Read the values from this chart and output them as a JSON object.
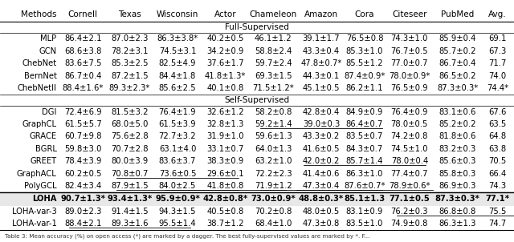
{
  "columns": [
    "Methods",
    "Cornell",
    "Texas",
    "Wisconsin",
    "Actor",
    "Chameleon",
    "Amazon",
    "Cora",
    "Citeseer",
    "PubMed",
    "Avg."
  ],
  "rows_full": [
    [
      "MLP",
      "86.4±2.1",
      "87.0±2.3",
      "86.3±3.8*",
      "40.2±0.5",
      "46.1±1.2",
      "39.1±1.7",
      "76.5±0.8",
      "74.3±1.0",
      "85.9±0.4",
      "69.1"
    ],
    [
      "GCN",
      "68.6±3.8",
      "78.2±3.1",
      "74.5±3.1",
      "34.2±0.9",
      "58.8±2.4",
      "43.3±0.4",
      "85.3±1.0",
      "76.7±0.5",
      "85.7±0.2",
      "67.3"
    ],
    [
      "ChebNet",
      "83.6±7.5",
      "85.3±2.5",
      "82.5±4.9",
      "37.6±1.7",
      "59.7±2.4",
      "47.8±0.7*",
      "85.5±1.2",
      "77.0±0.7",
      "86.7±0.4",
      "71.7"
    ],
    [
      "BernNet",
      "86.7±0.4",
      "87.2±1.5",
      "84.4±1.8",
      "41.8±1.3*",
      "69.3±1.5",
      "44.3±0.1",
      "87.4±0.9*",
      "78.0±0.9*",
      "86.5±0.2",
      "74.0"
    ],
    [
      "ChebNetII",
      "88.4±1.6*",
      "89.3±2.3*",
      "85.6±2.5",
      "40.1±0.8",
      "71.5±1.2*",
      "45.1±0.5",
      "86.2±1.1",
      "76.5±0.9",
      "87.3±0.3*",
      "74.4*"
    ]
  ],
  "rows_self": [
    [
      "DGI",
      "72.4±6.9",
      "81.5±3.2",
      "76.4±1.9",
      "32.6±1.2",
      "58.2±0.8",
      "42.8±0.4",
      "84.9±0.9",
      "76.4±0.9",
      "83.1±0.6",
      "67.6"
    ],
    [
      "GraphCL",
      "61.5±5.7",
      "68.0±5.0",
      "61.5±3.9",
      "32.8±1.3",
      "59.2±1.4",
      "39.0±0.3",
      "86.4±0.7",
      "78.0±0.5",
      "85.2±0.2",
      "63.5"
    ],
    [
      "GRACE",
      "60.7±9.8",
      "75.6±2.8",
      "72.7±3.2",
      "31.9±1.0",
      "59.6±1.3",
      "43.3±0.2",
      "83.5±0.7",
      "74.2±0.8",
      "81.8±0.6",
      "64.8"
    ],
    [
      "BGRL",
      "59.8±3.0",
      "70.7±2.8",
      "63.1±4.0",
      "33.1±0.7",
      "64.0±1.3",
      "41.6±0.5",
      "84.3±0.7",
      "74.5±1.0",
      "83.2±0.3",
      "63.8"
    ],
    [
      "GREET",
      "78.4±3.9",
      "80.0±3.9",
      "83.6±3.7",
      "38.3±0.9",
      "63.2±1.0",
      "42.0±0.2",
      "85.7±1.4",
      "78.0±0.4",
      "85.6±0.3",
      "70.5"
    ],
    [
      "GraphACL",
      "60.2±0.5",
      "70.8±0.7",
      "73.6±0.5",
      "29.6±0.1",
      "72.2±2.3",
      "41.4±0.6",
      "86.3±1.0",
      "77.4±0.7",
      "85.8±0.3",
      "66.4"
    ],
    [
      "PolyGCL",
      "82.4±3.4",
      "87.9±1.5",
      "84.0±2.5",
      "41.8±0.8",
      "71.9±1.2",
      "47.3±0.4",
      "87.6±0.7*",
      "78.9±0.6*",
      "86.9±0.3",
      "74.3"
    ]
  ],
  "rows_loha": [
    [
      "LOHA",
      "90.7±1.3*",
      "93.4±1.3*",
      "95.9±0.9*",
      "42.8±0.8*",
      "73.0±0.9*",
      "48.8±0.3*",
      "85.1±1.3",
      "77.1±0.5",
      "87.3±0.3*",
      "77.1*"
    ],
    [
      "LOHA-var-3",
      "89.0±2.3",
      "91.4±1.5",
      "94.3±1.5",
      "40.5±0.8",
      "70.2±0.8",
      "48.0±0.5",
      "83.1±0.9",
      "76.2±0.3",
      "86.8±0.8",
      "75.5"
    ],
    [
      "LOHA-var-1",
      "88.4±2.1",
      "89.3±1.6",
      "95.5±1.4",
      "38.7±1.2",
      "68.4±1.0",
      "47.3±0.8",
      "83.5±1.0",
      "74.9±0.8",
      "86.3±1.3",
      "74.7"
    ]
  ],
  "underlines": [
    [
      "self",
      1,
      6
    ],
    [
      "self",
      4,
      7
    ],
    [
      "self",
      5,
      3
    ],
    [
      "self",
      6,
      3
    ],
    [
      "self",
      6,
      4
    ],
    [
      "self",
      6,
      6
    ],
    [
      "self",
      6,
      7
    ],
    [
      "loha",
      1,
      9
    ],
    [
      "loha",
      2,
      2
    ]
  ],
  "section_full": "Full-Supervised",
  "section_self": "Self-Supervised",
  "caption": "Table 3: Mean accuracy (%) on open access (*) are marked by a dagger. The best fully-supervised values are marked by *. F...",
  "font_size": 7.2,
  "col_widths_rel": [
    1.15,
    0.95,
    0.88,
    1.0,
    0.88,
    1.0,
    0.88,
    0.82,
    0.94,
    0.94,
    0.64
  ]
}
